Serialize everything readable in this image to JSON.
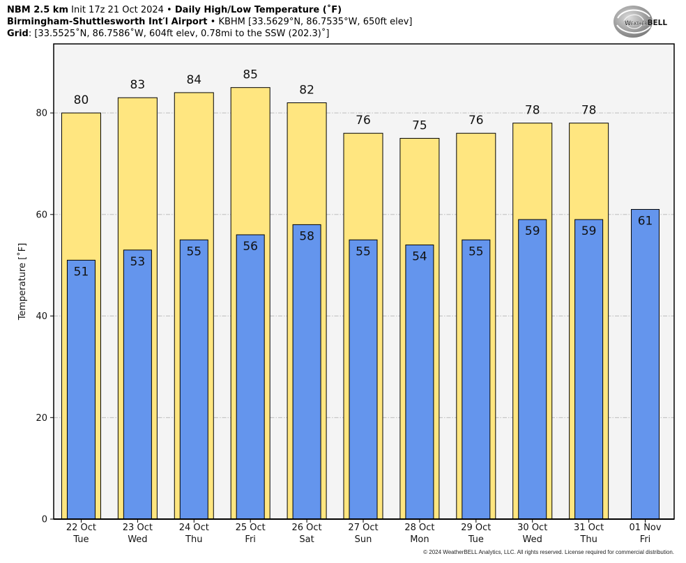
{
  "header": {
    "model": "NBM 2.5 km",
    "init": "Init 17z 21 Oct 2024 •",
    "station": "Birmingham-Shuttlesworth Int′l Airport",
    "station_details": "• KBHM [33.5629°N, 86.7535°W, 650ft elev]",
    "grid_label": "Grid",
    "grid_details": ": [33.5525˚N, 86.7586˚W, 604ft elev, 0.78mi to the SSW (202.3)˚]"
  },
  "logo": {
    "part1": "Weather",
    "part2": "BELL"
  },
  "footer": "© 2024 WeatherBELL Analytics, LLC. All rights reserved. License required for commercial distribution.",
  "colors": {
    "plot_background": "#f4f4f4",
    "gridline": "#b4b4b4",
    "bar_edge": "#000000"
  },
  "chart_data": {
    "type": "bar",
    "title": "Daily High/Low Temperature (˚F)",
    "ylabel": "Temperature [˚F]",
    "ylim": [
      0,
      93.6
    ],
    "yticks": [
      0,
      20,
      40,
      60,
      80
    ],
    "grid": true,
    "categories": [
      "22 Oct",
      "23 Oct",
      "24 Oct",
      "25 Oct",
      "26 Oct",
      "27 Oct",
      "28 Oct",
      "29 Oct",
      "30 Oct",
      "31 Oct",
      "01 Nov"
    ],
    "category_sublabels": [
      "Tue",
      "Wed",
      "Thu",
      "Fri",
      "Sat",
      "Sun",
      "Mon",
      "Tue",
      "Wed",
      "Thu",
      "Fri"
    ],
    "series": [
      {
        "values": [
          80,
          83,
          84,
          85,
          82,
          76,
          75,
          76,
          78,
          78,
          null
        ],
        "color": "#ffe680"
      },
      {
        "values": [
          51,
          53,
          55,
          56,
          58,
          55,
          54,
          55,
          59,
          59,
          61
        ],
        "color": "#6495ed"
      }
    ]
  }
}
